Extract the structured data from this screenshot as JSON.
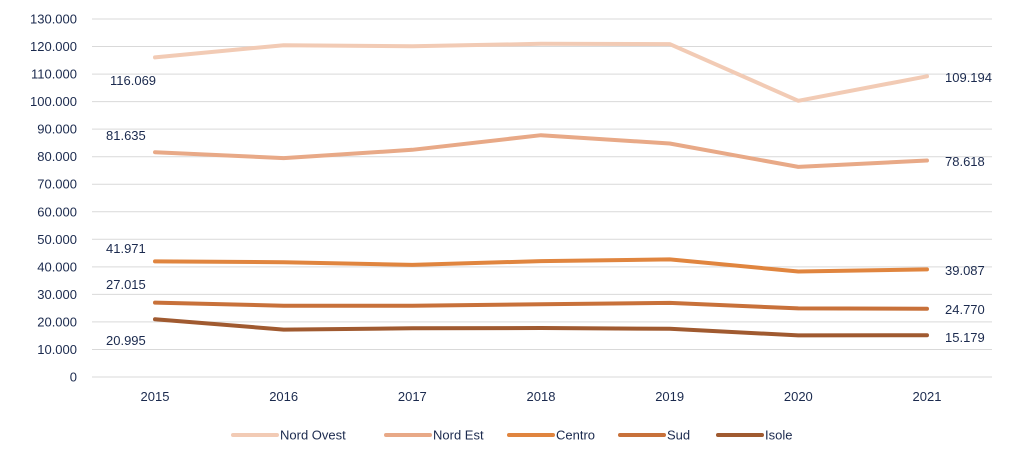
{
  "chart_data": {
    "type": "line",
    "categories": [
      "2015",
      "2016",
      "2017",
      "2018",
      "2019",
      "2020",
      "2021"
    ],
    "ylim": [
      0,
      130000
    ],
    "ytick_values": [
      0,
      10000,
      20000,
      30000,
      40000,
      50000,
      60000,
      70000,
      80000,
      90000,
      100000,
      110000,
      120000,
      130000
    ],
    "ytick_labels": [
      "0",
      "10.000",
      "20.000",
      "30.000",
      "40.000",
      "50.000",
      "60.000",
      "70.000",
      "80.000",
      "90.000",
      "100.000",
      "110.000",
      "120.000",
      "130.000"
    ],
    "grid": true,
    "legend_position": "bottom",
    "series": [
      {
        "name": "Nord Ovest",
        "color": "#f2cbb5",
        "values": [
          116069,
          120500,
          120100,
          121000,
          120900,
          100300,
          109194
        ],
        "first_label": "116.069",
        "last_label": "109.194"
      },
      {
        "name": "Nord Est",
        "color": "#e8a987",
        "values": [
          81635,
          79500,
          82500,
          87800,
          84800,
          76300,
          78618
        ],
        "first_label": "81.635",
        "last_label": "78.618"
      },
      {
        "name": "Centro",
        "color": "#e0853f",
        "values": [
          41971,
          41700,
          40700,
          42100,
          42700,
          38300,
          39087
        ],
        "first_label": "41.971",
        "last_label": "39.087"
      },
      {
        "name": "Sud",
        "color": "#c8713a",
        "values": [
          27015,
          25900,
          25900,
          26400,
          26900,
          24900,
          24770
        ],
        "first_label": "27.015",
        "last_label": "24.770"
      },
      {
        "name": "Isole",
        "color": "#a05a30",
        "values": [
          20995,
          17200,
          17700,
          17800,
          17500,
          15100,
          15179
        ],
        "first_label": "20.995",
        "last_label": "15.179"
      }
    ]
  }
}
